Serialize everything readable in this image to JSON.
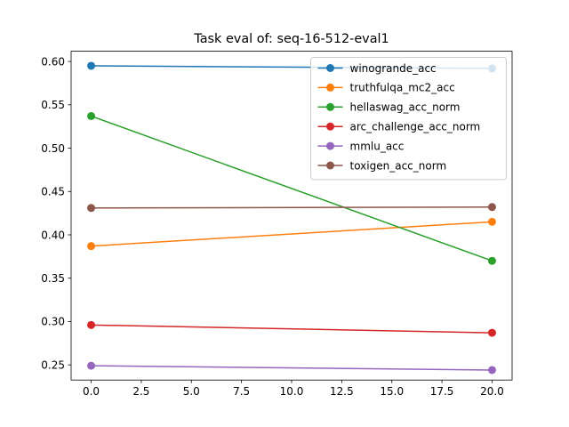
{
  "chart_data": {
    "type": "line",
    "title": "Task eval of: seq-16-512-eval1",
    "xlabel": "",
    "ylabel": "",
    "x": [
      0,
      20
    ],
    "xlim": [
      -1,
      21
    ],
    "ylim": [
      0.2325,
      0.6118
    ],
    "xticks": [
      0,
      2.5,
      5,
      7.5,
      10,
      12.5,
      15,
      17.5,
      20
    ],
    "xtick_labels": [
      "0.0",
      "2.5",
      "5.0",
      "7.5",
      "10.0",
      "12.5",
      "15.0",
      "17.5",
      "20.0"
    ],
    "yticks": [
      0.25,
      0.3,
      0.35,
      0.4,
      0.45,
      0.5,
      0.55,
      0.6
    ],
    "ytick_labels": [
      "0.25",
      "0.30",
      "0.35",
      "0.40",
      "0.45",
      "0.50",
      "0.55",
      "0.60"
    ],
    "grid": false,
    "legend_position": "top-right",
    "series": [
      {
        "name": "winogrande_acc",
        "color": "#1f77b4",
        "values": [
          0.595,
          0.592
        ]
      },
      {
        "name": "truthfulqa_mc2_acc",
        "color": "#ff7f0e",
        "values": [
          0.387,
          0.415
        ]
      },
      {
        "name": "hellaswag_acc_norm",
        "color": "#2ca02c",
        "values": [
          0.537,
          0.37
        ]
      },
      {
        "name": "arc_challenge_acc_norm",
        "color": "#d62728",
        "values": [
          0.296,
          0.287
        ]
      },
      {
        "name": "mmlu_acc",
        "color": "#9467bd",
        "values": [
          0.249,
          0.244
        ]
      },
      {
        "name": "toxigen_acc_norm",
        "color": "#8c564b",
        "values": [
          0.431,
          0.432
        ]
      }
    ]
  }
}
